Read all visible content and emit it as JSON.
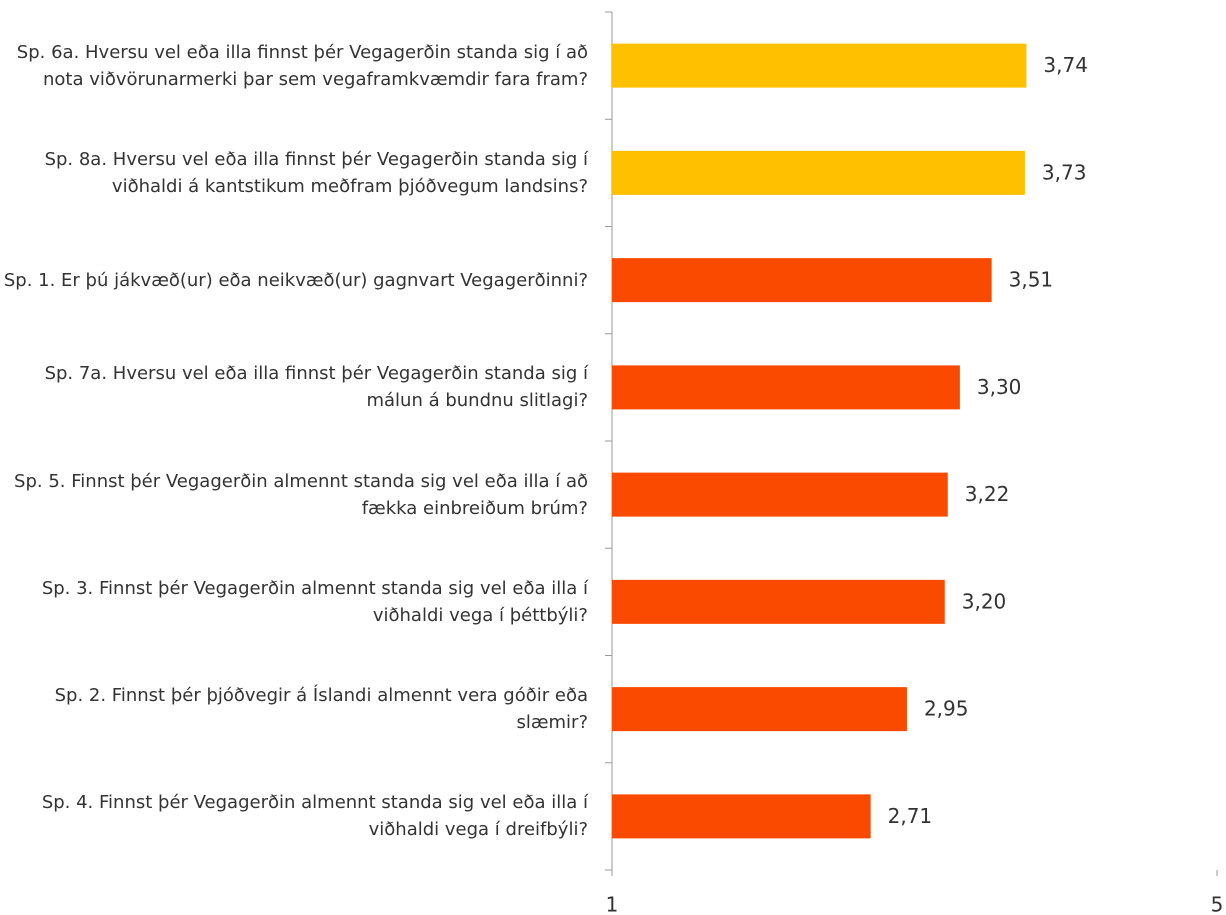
{
  "chart_data": {
    "type": "hbar",
    "categories": [
      "Sp. 6a. Hversu vel eða illa finnst þér Vegagerðin standa sig í að nota viðvörunarmerki þar sem vegaframkvæmdir fara fram?",
      "Sp. 8a. Hversu vel eða illa finnst þér Vegagerðin standa sig í viðhaldi á kantstikum meðfram þjóðvegum landsins?",
      "Sp. 1. Er þú jákvæð(ur) eða neikvæð(ur) gagnvart Vegagerðinni?",
      "Sp. 7a. Hversu vel eða illa finnst þér Vegagerðin standa sig í málun á bundnu slitlagi?",
      "Sp. 5. Finnst þér Vegagerðin almennt standa sig vel eða illa í að fækka einbreiðum brúm?",
      "Sp. 3. Finnst þér Vegagerðin almennt standa sig vel eða illa í viðhaldi vega í þéttbýli?",
      "Sp. 2. Finnst þér þjóðvegir á Íslandi almennt vera góðir eða slæmir?",
      "Sp. 4. Finnst þér Vegagerðin almennt standa sig vel eða illa í viðhaldi vega í dreifbýli?"
    ],
    "values": [
      3.74,
      3.73,
      3.51,
      3.3,
      3.22,
      3.2,
      2.95,
      2.71
    ],
    "value_labels": [
      "3,74",
      "3,73",
      "3,51",
      "3,30",
      "3,22",
      "3,20",
      "2,95",
      "2,71"
    ],
    "colors": [
      "#ffc000",
      "#ffc000",
      "#f94a00",
      "#f94a00",
      "#f94a00",
      "#f94a00",
      "#f94a00",
      "#f94a00"
    ],
    "xlim": [
      1,
      5
    ],
    "xticks": [
      1,
      5
    ]
  }
}
